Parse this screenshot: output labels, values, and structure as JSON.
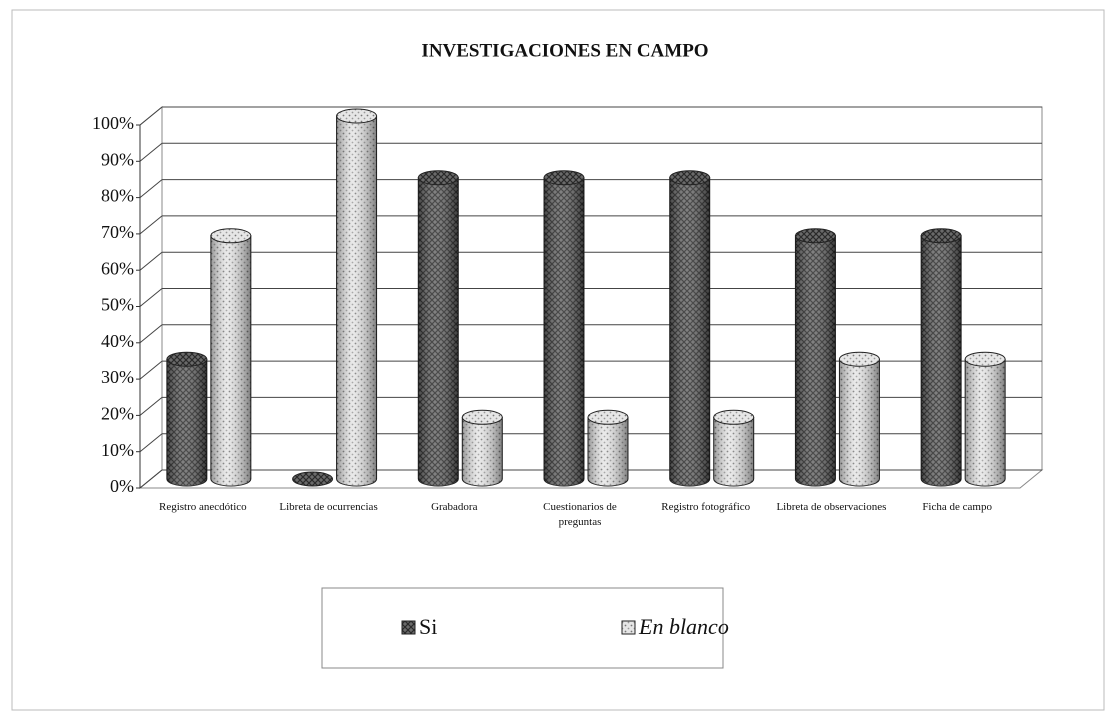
{
  "chart_data": {
    "type": "bar3d",
    "title": "INVESTIGACIONES EN CAMPO",
    "categories": [
      "Registro anecdótico",
      "Libreta de ocurrencias",
      "Grabadora",
      "Cuestionarios de preguntas",
      "Registro fotográfico",
      "Libreta de observaciones",
      "Ficha de campo"
    ],
    "series": [
      {
        "name": "Si",
        "color": "#5a5a5a",
        "values": [
          33,
          0,
          83,
          83,
          83,
          67,
          67
        ]
      },
      {
        "name": "En blanco",
        "color": "#dcdcdc",
        "values": [
          67,
          100,
          17,
          17,
          17,
          33,
          33
        ]
      }
    ],
    "ylim": [
      0,
      100
    ],
    "yticks": [
      {
        "value": 0,
        "label": "0%"
      },
      {
        "value": 10,
        "label": "10%"
      },
      {
        "value": 20,
        "label": "20%"
      },
      {
        "value": 30,
        "label": "30%"
      },
      {
        "value": 40,
        "label": "40%"
      },
      {
        "value": 50,
        "label": "50%"
      },
      {
        "value": 60,
        "label": "60%"
      },
      {
        "value": 70,
        "label": "70%"
      },
      {
        "value": 80,
        "label": "80%"
      },
      {
        "value": 90,
        "label": "90%"
      },
      {
        "value": 100,
        "label": "100%"
      }
    ],
    "grid": true,
    "legend": "bottom"
  }
}
